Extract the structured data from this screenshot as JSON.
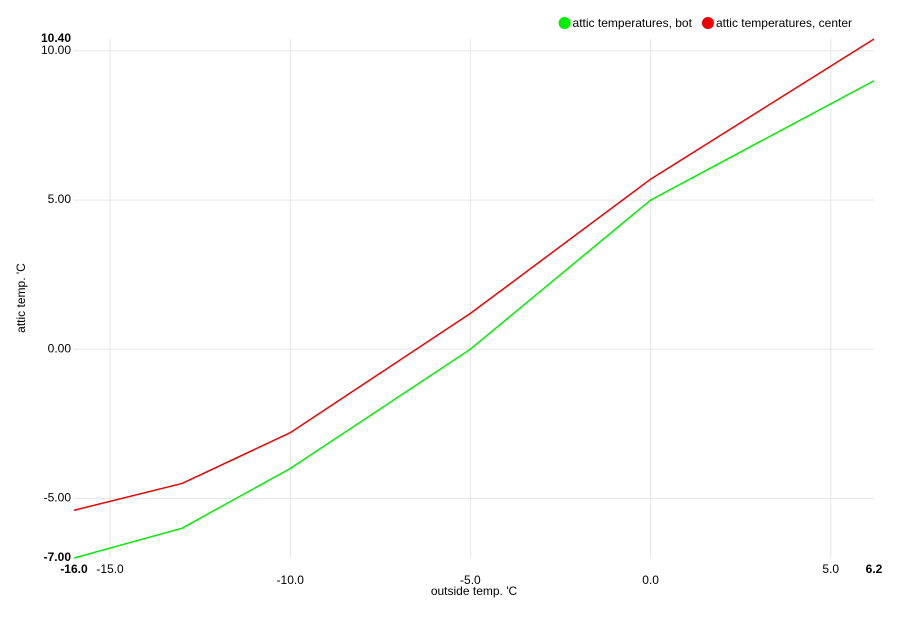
{
  "chart_data": {
    "type": "line",
    "x_label": "outside temp. 'C",
    "y_label": "attic temp. 'C",
    "x": [
      -16,
      -13,
      -10,
      -5,
      0,
      6.2
    ],
    "series": [
      {
        "name": "attic temperatures, bot",
        "color": "#00ee00",
        "values": [
          -7,
          -6,
          -4,
          0,
          5,
          9
        ]
      },
      {
        "name": "attic temperatures, center",
        "color": "#ee0000",
        "values": [
          -5.4,
          -4.5,
          -2.8,
          1.2,
          5.7,
          10.4
        ]
      }
    ],
    "xlim": [
      -16,
      6.2
    ],
    "xticks": [
      {
        "value": -16,
        "label": "-16.0"
      },
      {
        "value": -15,
        "label": "-15.0"
      },
      {
        "value": -10,
        "label": "-10.0"
      },
      {
        "value": -5,
        "label": "-5.0"
      },
      {
        "value": 0,
        "label": "0.0"
      },
      {
        "value": 5,
        "label": "5.0"
      },
      6.2
    ],
    "ylim": [
      -7,
      10.4
    ],
    "yticks": [
      {
        "value": -7,
        "label": "-7.00"
      },
      {
        "value": -5,
        "label": "-5.00"
      },
      {
        "value": 0,
        "label": "0.00"
      },
      {
        "value": 5,
        "label": "5.00"
      },
      {
        "value": 10,
        "label": "10.00"
      },
      {
        "value": 10.4,
        "label": "10.40"
      }
    ],
    "grid": true,
    "legend": "top-right"
  }
}
